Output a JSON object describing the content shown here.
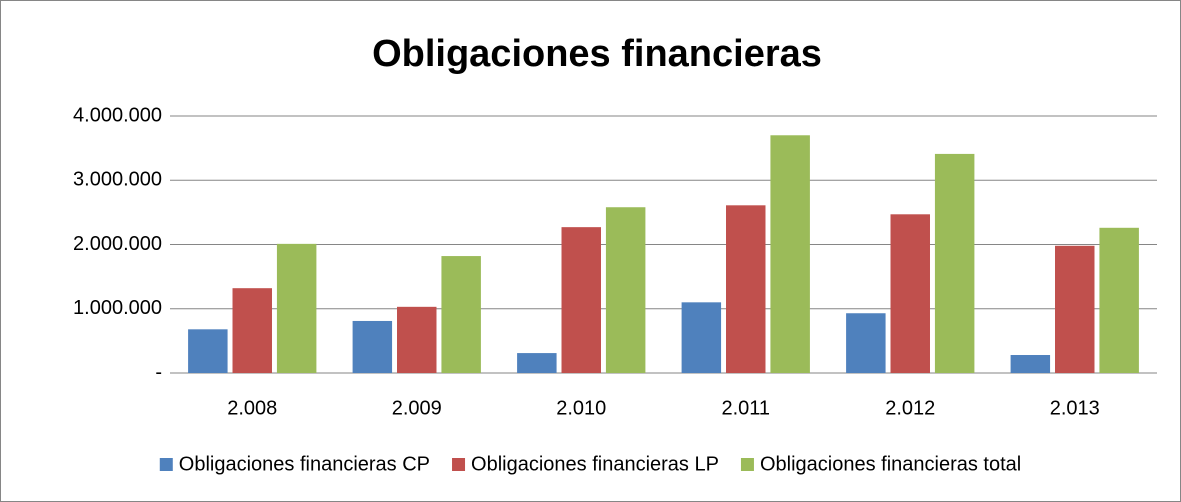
{
  "chart_data": {
    "type": "bar",
    "title": "Obligaciones financieras",
    "categories": [
      "2.008",
      "2.009",
      "2.010",
      "2.011",
      "2.012",
      "2.013"
    ],
    "series": [
      {
        "name": "Obligaciones financieras CP",
        "color": "#4f81bd",
        "values": [
          680000,
          810000,
          310000,
          1100000,
          930000,
          280000
        ]
      },
      {
        "name": "Obligaciones financieras LP",
        "color": "#c0504d",
        "values": [
          1320000,
          1030000,
          2270000,
          2610000,
          2470000,
          1980000
        ]
      },
      {
        "name": "Obligaciones financieras total",
        "color": "#9bbb59",
        "values": [
          2010000,
          1820000,
          2580000,
          3700000,
          3410000,
          2260000
        ]
      }
    ],
    "ylim": [
      0,
      4000000
    ],
    "yticks": [
      {
        "value": 0,
        "label": "-"
      },
      {
        "value": 1000000,
        "label": "1.000.000"
      },
      {
        "value": 2000000,
        "label": "2.000.000"
      },
      {
        "value": 3000000,
        "label": "3.000.000"
      },
      {
        "value": 4000000,
        "label": "4.000.000"
      }
    ],
    "grid": true,
    "legend": "bottom"
  }
}
